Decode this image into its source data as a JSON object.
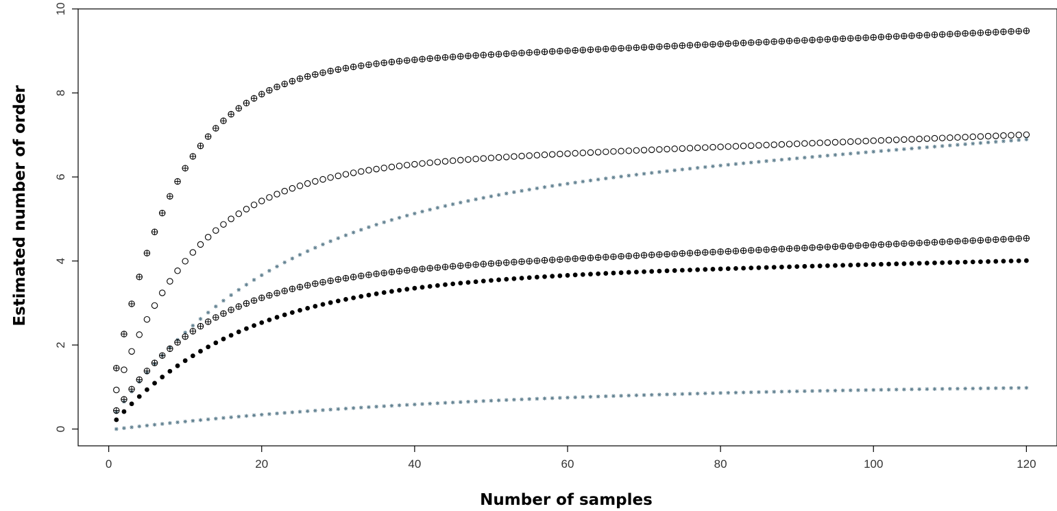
{
  "chart_data": {
    "type": "scatter",
    "title": "",
    "xlabel": "Number of samples",
    "ylabel": "Estimated number of order",
    "xlim": [
      -4,
      124
    ],
    "ylim": [
      -0.4,
      10
    ],
    "xticks": [
      0,
      20,
      40,
      60,
      80,
      100,
      120
    ],
    "yticks": [
      0,
      2,
      4,
      6,
      8,
      10
    ],
    "grid": false,
    "legend": "none",
    "n_points": 120,
    "series": [
      {
        "marker": "circle-plus",
        "color": "#000000",
        "start": 1.45,
        "asymptote": 8.55,
        "rate": 0.12,
        "slope": 0.0078
      },
      {
        "marker": "circle-open",
        "color": "#000000",
        "start": 0.93,
        "asymptote": 6.15,
        "rate": 0.095,
        "slope": 0.0072
      },
      {
        "marker": "star",
        "color": "#5f7f8f",
        "start": 0.4,
        "asymptote": 5.3,
        "rate": 0.05,
        "slope": 0.0135
      },
      {
        "marker": "circle-plus",
        "color": "#000000",
        "start": 0.44,
        "asymptote": 3.6,
        "rate": 0.085,
        "slope": 0.0079
      },
      {
        "marker": "circle-filled",
        "color": "#000000",
        "start": 0.22,
        "asymptote": 3.5,
        "rate": 0.06,
        "slope": 0.0043
      },
      {
        "marker": "star",
        "color": "#5f7f8f",
        "start": 0.0,
        "asymptote": 1.08,
        "rate": 0.02,
        "slope": 0.0
      }
    ]
  }
}
